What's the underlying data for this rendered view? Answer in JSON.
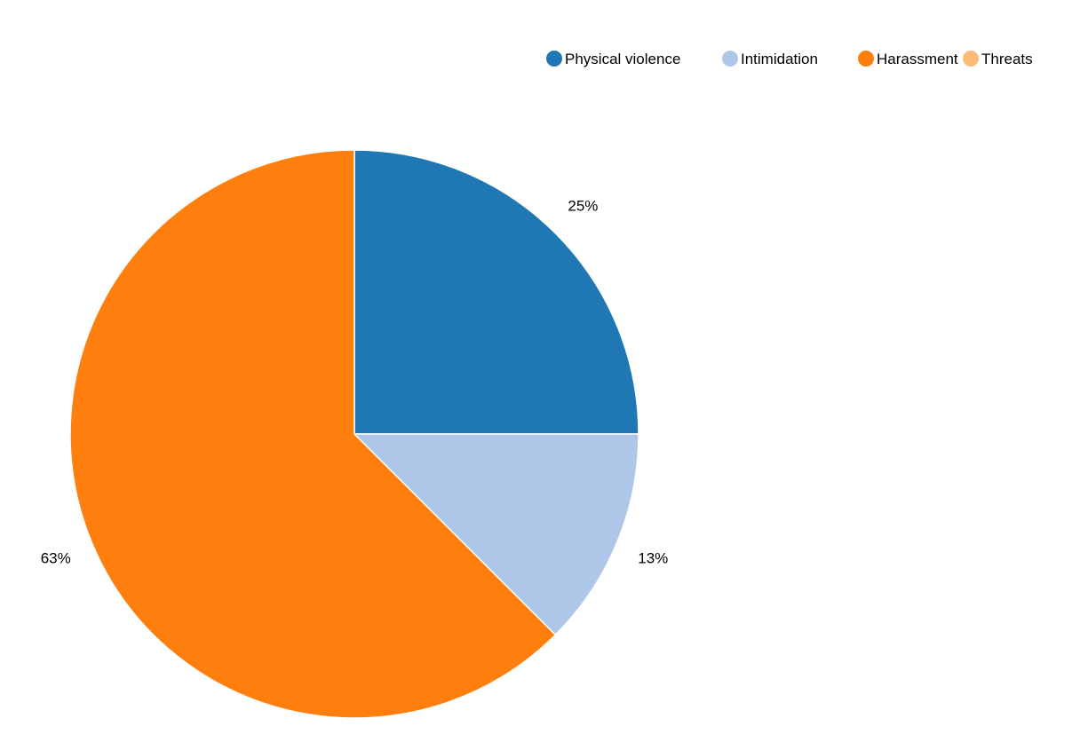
{
  "chart_data": {
    "type": "pie",
    "title": "",
    "legend_position": "top-right",
    "slices": [
      {
        "label": "Physical violence",
        "value": 25,
        "display": "25%",
        "color": "#1f77b4"
      },
      {
        "label": "Intimidation",
        "value": 12.5,
        "display": "13%",
        "color": "#aec7e8"
      },
      {
        "label": "Harassment",
        "value": 62.5,
        "display": "63%",
        "color": "#ff7f0e"
      },
      {
        "label": "Threats",
        "value": 0,
        "display": "",
        "color": "#ffbb78"
      }
    ]
  }
}
